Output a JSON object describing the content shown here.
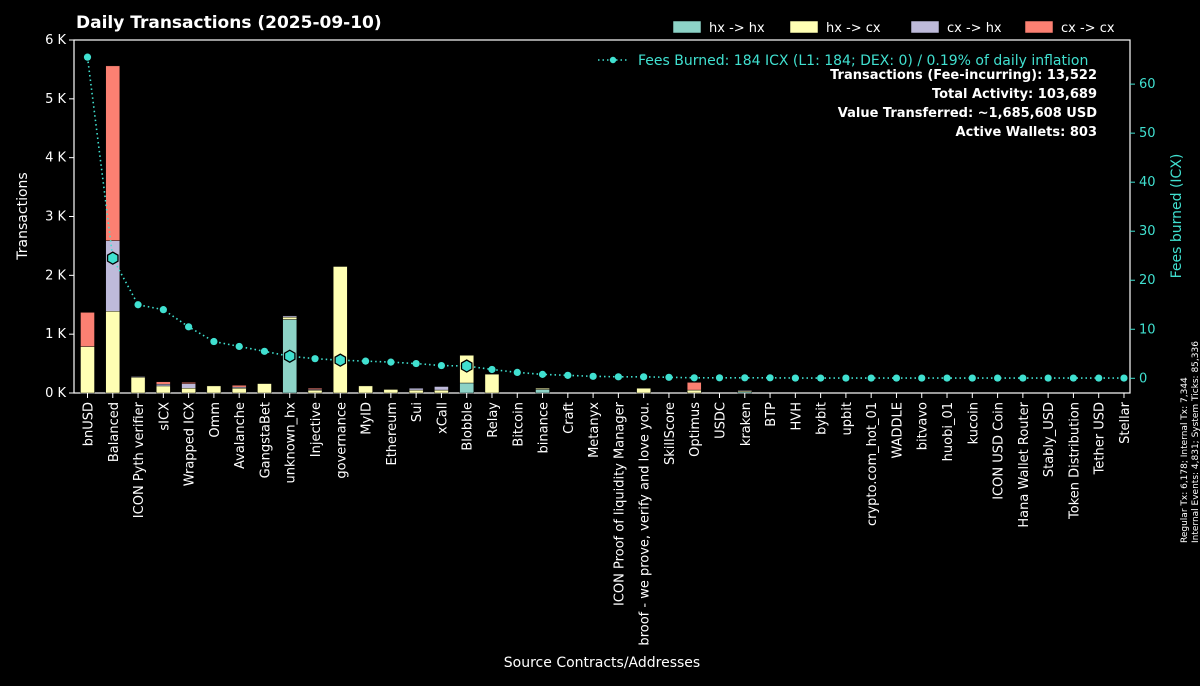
{
  "chart_data": {
    "type": "bar",
    "title": "Daily Transactions (2025-09-10)",
    "xlabel": "Source Contracts/Addresses",
    "ylabel": "Transactions",
    "y2label": "Fees burned (ICX)",
    "ylim": [
      0,
      6000
    ],
    "y2lim": [
      -3,
      69
    ],
    "yticks": [
      {
        "v": 0,
        "label": "0 K"
      },
      {
        "v": 1000,
        "label": "1 K"
      },
      {
        "v": 2000,
        "label": "2 K"
      },
      {
        "v": 3000,
        "label": "3 K"
      },
      {
        "v": 4000,
        "label": "4 K"
      },
      {
        "v": 5000,
        "label": "5 K"
      },
      {
        "v": 6000,
        "label": "6 K"
      }
    ],
    "y2ticks": [
      0,
      10,
      20,
      30,
      40,
      50,
      60
    ],
    "grid": false,
    "legend_position": "top-right",
    "categories": [
      "bnUSD",
      "Balanced",
      "ICON Pyth verifier",
      "sICX",
      "Wrapped ICX",
      "Omm",
      "Avalanche",
      "GangstaBet",
      "unknown_hx",
      "Injective",
      "governance",
      "MyID",
      "Ethereum",
      "Sui",
      "xCall",
      "Blobble",
      "Relay",
      "Bitcoin",
      "binance",
      "Craft",
      "Metanyx",
      "ICON Proof of liquidity Manager",
      "broof - we prove, verify and love you.",
      "SkillScore",
      "Optimus",
      "USDC",
      "kraken",
      "BTP",
      "HVH",
      "bybit",
      "upbit",
      "crypto.com_hot_01",
      "WADDLE",
      "bitvavo",
      "huobi_01",
      "kucoin",
      "ICON USD Coin",
      "Hana Wallet Router",
      "Stably_USD",
      "Token Distribution",
      "Tether USD",
      "Stellar"
    ],
    "series": [
      {
        "name": "hx -> hx",
        "color": "#8dd3c7",
        "values": [
          0,
          0,
          0,
          0,
          0,
          0,
          0,
          0,
          1250,
          0,
          0,
          0,
          0,
          0,
          0,
          170,
          0,
          0,
          60,
          0,
          0,
          0,
          0,
          0,
          0,
          0,
          20,
          0,
          0,
          0,
          0,
          0,
          0,
          0,
          0,
          0,
          0,
          0,
          0,
          0,
          0,
          0
        ]
      },
      {
        "name": "hx -> cx",
        "color": "#ffffb3",
        "values": [
          790,
          1390,
          270,
          120,
          80,
          120,
          80,
          160,
          40,
          50,
          2150,
          120,
          60,
          50,
          50,
          470,
          320,
          0,
          20,
          0,
          0,
          0,
          80,
          0,
          50,
          0,
          20,
          0,
          0,
          0,
          0,
          0,
          0,
          0,
          0,
          0,
          0,
          0,
          0,
          0,
          0,
          0
        ]
      },
      {
        "name": "cx -> hx",
        "color": "#bebada",
        "values": [
          0,
          1200,
          10,
          30,
          80,
          0,
          20,
          0,
          20,
          10,
          0,
          0,
          0,
          30,
          60,
          0,
          0,
          0,
          0,
          0,
          0,
          0,
          0,
          0,
          0,
          0,
          10,
          0,
          0,
          0,
          0,
          0,
          0,
          0,
          0,
          0,
          0,
          0,
          0,
          0,
          0,
          0
        ]
      },
      {
        "name": "cx -> cx",
        "color": "#fb8072",
        "values": [
          580,
          2970,
          0,
          40,
          20,
          0,
          30,
          0,
          0,
          20,
          0,
          0,
          0,
          0,
          0,
          0,
          0,
          0,
          0,
          0,
          0,
          0,
          0,
          0,
          130,
          0,
          0,
          0,
          0,
          0,
          0,
          0,
          0,
          0,
          0,
          0,
          0,
          0,
          0,
          0,
          0,
          0
        ]
      }
    ],
    "fees_series": {
      "name": "Fees Burned: 184 ICX (L1: 184; DEX: 0) / 0.19% of daily inflation",
      "color": "#40e0d0",
      "values": [
        65.5,
        24.5,
        15,
        14,
        10.5,
        7.5,
        6.5,
        5.5,
        4.5,
        4,
        3.7,
        3.5,
        3.3,
        3,
        2.6,
        2.5,
        1.8,
        1.2,
        0.8,
        0.6,
        0.4,
        0.3,
        0.3,
        0.2,
        0.1,
        0.1,
        0.1,
        0.1,
        0.05,
        0.05,
        0.05,
        0.05,
        0.05,
        0.05,
        0.05,
        0.05,
        0.05,
        0.05,
        0.05,
        0.05,
        0.05,
        0.05
      ],
      "highlighted": [
        "Balanced",
        "unknown_hx",
        "governance",
        "Blobble"
      ]
    }
  },
  "stats": [
    "Transactions (Fee-incurring): 13,522",
    "Total Activity: 103,689",
    "Value Transferred: ~1,685,608 USD",
    "Active Wallets: 803"
  ],
  "side_notes": [
    "Regular Tx: 6,178; Internal Tx: 7,344",
    "Internal Events: 4,831; System Ticks: 85,336"
  ]
}
